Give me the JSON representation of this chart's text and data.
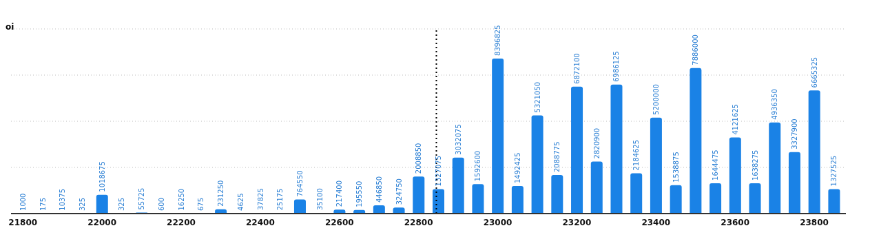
{
  "chart_data": {
    "type": "bar",
    "ylabel": "oi",
    "x": [
      21800,
      21850,
      21900,
      21950,
      22000,
      22050,
      22100,
      22150,
      22200,
      22250,
      22300,
      22350,
      22400,
      22450,
      22500,
      22550,
      22600,
      22650,
      22700,
      22750,
      22800,
      22850,
      22900,
      22950,
      23000,
      23050,
      23100,
      23150,
      23200,
      23250,
      23300,
      23350,
      23400,
      23450,
      23500,
      23550,
      23600,
      23650,
      23700,
      23750,
      23800,
      23850
    ],
    "values": [
      1000,
      175,
      10375,
      325,
      1018675,
      325,
      55725,
      600,
      16250,
      675,
      231250,
      4625,
      37825,
      25175,
      764550,
      35100,
      217400,
      195550,
      446850,
      324750,
      2008850,
      1327075,
      3032075,
      1592600,
      8396825,
      1492425,
      5321050,
      2088775,
      6872100,
      2820900,
      6986125,
      2184625,
      5200000,
      1538875,
      7886000,
      1644475,
      4121625,
      1638275,
      4936350,
      3327900,
      6665325,
      1327525
    ],
    "color": "#1a82e6",
    "xlim": [
      21770,
      23880
    ],
    "xticks": [
      21800,
      22000,
      22200,
      22400,
      22600,
      22800,
      23000,
      23200,
      23400,
      23600,
      23800
    ],
    "ylim": [
      0,
      10000000
    ],
    "tick_labels": "x",
    "grid": "y",
    "data_labels": true,
    "ref_lines": [
      {
        "axis": "x",
        "value": 22845,
        "color": "#000000",
        "line_style": "dotted"
      }
    ]
  }
}
